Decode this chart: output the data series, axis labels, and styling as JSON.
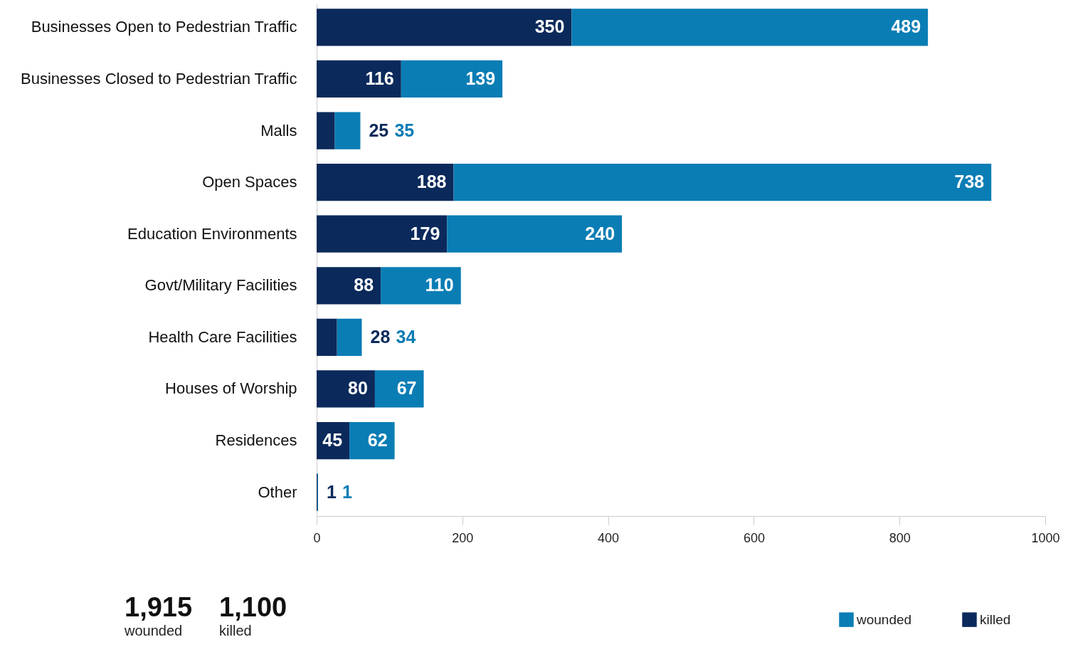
{
  "chart_data": {
    "type": "bar",
    "orientation": "horizontal",
    "stacked": true,
    "data_labels": true,
    "categories": [
      "Businesses Open to Pedestrian Traffic",
      "Businesses Closed to Pedestrian Traffic",
      "Malls",
      "Open Spaces",
      "Education Environments",
      "Govt/Military Facilities",
      "Health Care Facilities",
      "Houses of Worship",
      "Residences",
      "Other"
    ],
    "series": [
      {
        "name": "killed",
        "color": "#0b2a5b",
        "values": [
          350,
          116,
          25,
          188,
          179,
          88,
          28,
          80,
          45,
          1
        ]
      },
      {
        "name": "wounded",
        "color": "#0a7db5",
        "values": [
          489,
          139,
          35,
          738,
          240,
          110,
          34,
          67,
          62,
          1
        ]
      }
    ],
    "xlim": [
      0,
      1000
    ],
    "xticks": [
      0,
      200,
      400,
      600,
      800,
      1000
    ],
    "grid": false,
    "legend": "bottom right",
    "annotations": [
      "1,915",
      "wounded",
      "1,100",
      "killed"
    ]
  }
}
